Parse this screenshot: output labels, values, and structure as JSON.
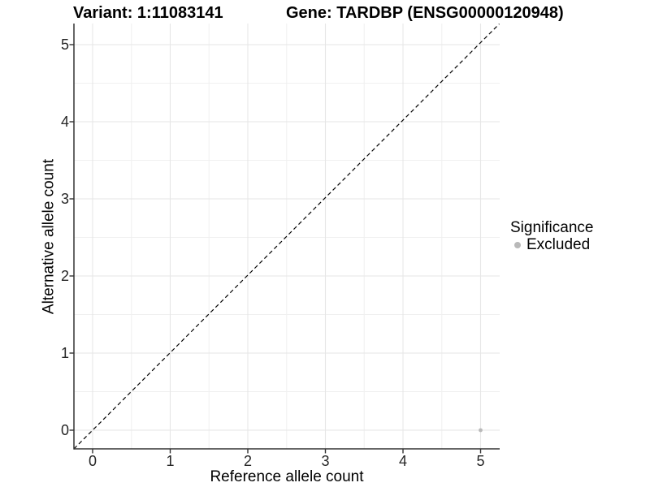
{
  "chart_data": {
    "type": "scatter",
    "titles": {
      "variant": "Variant: 1:11083141",
      "gene": "Gene: TARDBP (ENSG00000120948)"
    },
    "xlabel": "Reference allele count",
    "ylabel": "Alternative allele count",
    "x_ticks": [
      0,
      1,
      2,
      3,
      4,
      5
    ],
    "y_ticks": [
      0,
      1,
      2,
      3,
      4,
      5
    ],
    "xlim": [
      -0.25,
      5.25
    ],
    "ylim": [
      -0.25,
      5.25
    ],
    "grid": "on",
    "legend_position": "right",
    "legend": {
      "title": "Significance",
      "items": [
        {
          "label": "Excluded",
          "color": "#b9b9b9"
        }
      ]
    },
    "series": [
      {
        "name": "Excluded",
        "color": "#b9b9b9",
        "points": [
          {
            "x": 5,
            "y": 0
          }
        ]
      }
    ],
    "reference_line": {
      "type": "identity y=x",
      "style": "dashed",
      "color": "#000000"
    }
  },
  "colors": {
    "grid_major": "#e6e6e6",
    "grid_minor": "#f0f0f0",
    "axis_line": "#333333",
    "tick_text": "#262626",
    "point": "#b9b9b9",
    "dashed_line": "#000000"
  }
}
